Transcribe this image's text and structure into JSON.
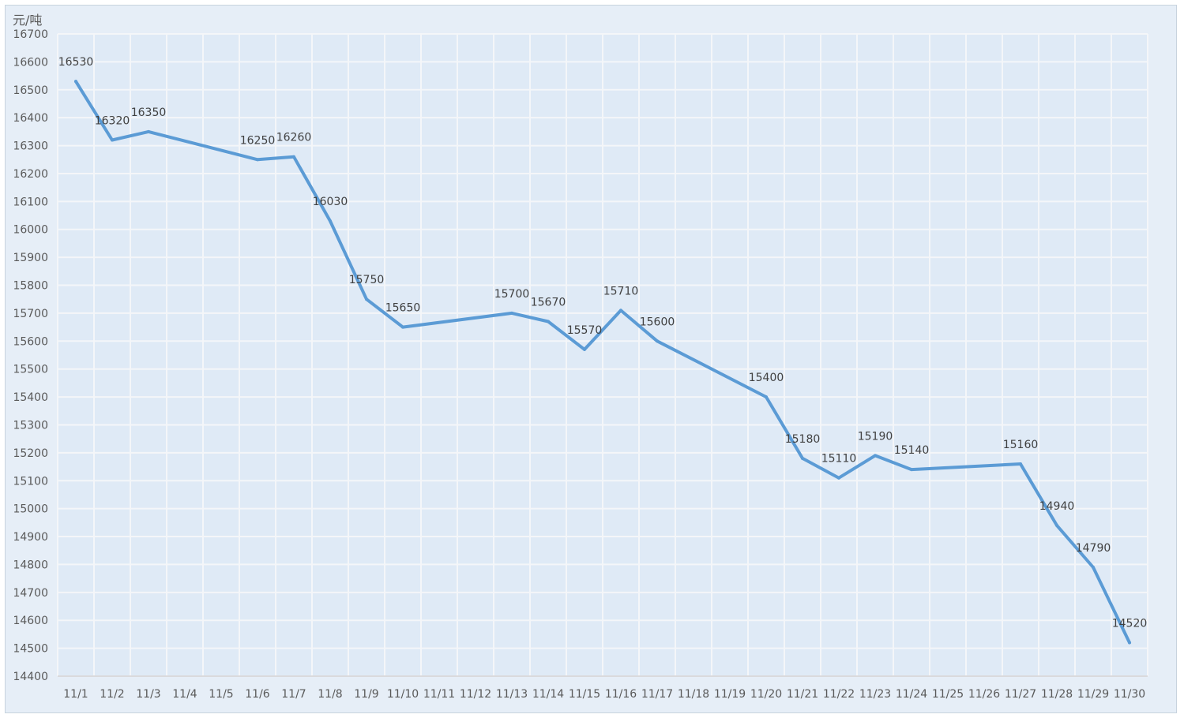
{
  "chart_data": {
    "type": "line",
    "title": "",
    "xlabel": "",
    "ylabel": "元/吨",
    "ylim": [
      14400,
      16700
    ],
    "ytick_step": 100,
    "grid": true,
    "legend": "none",
    "line_color": "#5b9bd5",
    "background_color": "#dfeaf6",
    "grid_color": "#f4f6f9",
    "categories": [
      "11/1",
      "11/2",
      "11/3",
      "11/4",
      "11/5",
      "11/6",
      "11/7",
      "11/8",
      "11/9",
      "11/10",
      "11/11",
      "11/12",
      "11/13",
      "11/14",
      "11/15",
      "11/16",
      "11/17",
      "11/18",
      "11/19",
      "11/20",
      "11/21",
      "11/22",
      "11/23",
      "11/24",
      "11/25",
      "11/26",
      "11/27",
      "11/28",
      "11/29",
      "11/30"
    ],
    "series": [
      {
        "x": [
          "11/1",
          "11/2",
          "11/3",
          "11/6",
          "11/7",
          "11/8",
          "11/9",
          "11/10",
          "11/13",
          "11/14",
          "11/15",
          "11/16",
          "11/17",
          "11/20",
          "11/21",
          "11/22",
          "11/23",
          "11/24",
          "11/27",
          "11/28",
          "11/29",
          "11/30"
        ],
        "values": [
          16530,
          16320,
          16350,
          16250,
          16260,
          16030,
          15750,
          15650,
          15700,
          15670,
          15570,
          15710,
          15600,
          15400,
          15180,
          15110,
          15190,
          15140,
          15160,
          14940,
          14790,
          14520
        ]
      }
    ]
  }
}
